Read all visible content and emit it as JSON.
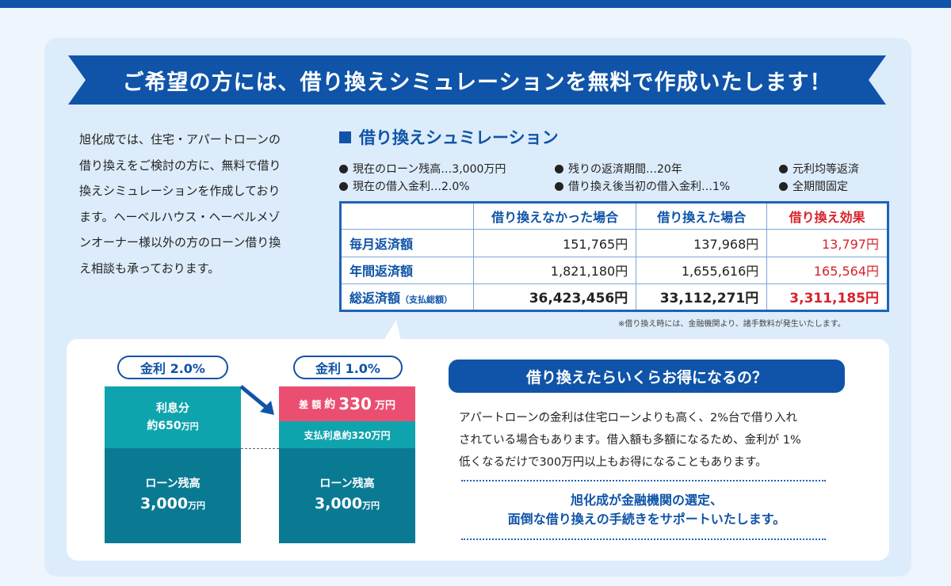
{
  "banner": {
    "title": "ご希望の方には、借り換えシミュレーションを無料で作成いたします！"
  },
  "intro": {
    "lines": [
      "旭化成では、住宅・アパートローンの",
      "借り換えをご検討の方に、無料で借り",
      "換えシミュレーションを作成しており",
      "ます。ヘーベルハウス・ヘーベルメゾ",
      "ンオーナー様以外の方のローン借り換",
      "え相談も承っております。"
    ]
  },
  "simulation": {
    "title": "借り換えシュミレーション",
    "conditions": [
      "現在のローン残高…3,000万円",
      "残りの返済期間…20年",
      "元利均等返済",
      "現在の借入金利…2.0%",
      "借り換え後当初の借入金利…1%",
      "全期間固定"
    ],
    "headers": [
      "",
      "借り換えなかった場合",
      "借り換えた場合",
      "借り換え効果"
    ],
    "rows": [
      {
        "label": "毎月返済額",
        "label_small": "",
        "before": "151,765円",
        "after": "137,968円",
        "effect": "13,797円"
      },
      {
        "label": "年間返済額",
        "label_small": "",
        "before": "1,821,180円",
        "after": "1,655,616円",
        "effect": "165,564円"
      },
      {
        "label": "総返済額",
        "label_small": "（支払総額）",
        "before": "36,423,456円",
        "after": "33,112,271円",
        "effect": "3,311,185円"
      }
    ],
    "note": "※借り換え時には、金融機関より、諸手数料が発生いたします。"
  },
  "comparison": {
    "left": {
      "rate": "金利 2.0%",
      "interest_label": "利息分",
      "interest_amount": "約650",
      "interest_unit": "万円",
      "balance_label": "ローン残高",
      "balance_amount": "3,000",
      "balance_unit": "万円"
    },
    "right": {
      "rate": "金利 1.0%",
      "diff_label": "差 額",
      "diff_prefix": "約",
      "diff_amount": "330",
      "diff_unit": "万円",
      "interest_label": "支払利息約320万円",
      "balance_label": "ローン残高",
      "balance_amount": "3,000",
      "balance_unit": "万円"
    }
  },
  "benefit": {
    "question": "借り換えたらいくらお得になるの？",
    "body_lines": [
      "アパートローンの金利は住宅ローンよりも高く、2%台で借り入れ",
      "されている場合もあります。借入額も多額になるため、金利が 1%",
      "低くなるだけで300万円以上もお得になることもあります。"
    ],
    "support_lines": [
      "旭化成が金融機関の選定、",
      "面倒な借り換えの手続きをサポートいたします。"
    ]
  },
  "colors": {
    "brand_blue": "#0f54a8",
    "teal": "#0fa4ad",
    "dark_teal": "#0a7a93",
    "pink": "#ea4f72",
    "effect_red": "#d7232d"
  }
}
